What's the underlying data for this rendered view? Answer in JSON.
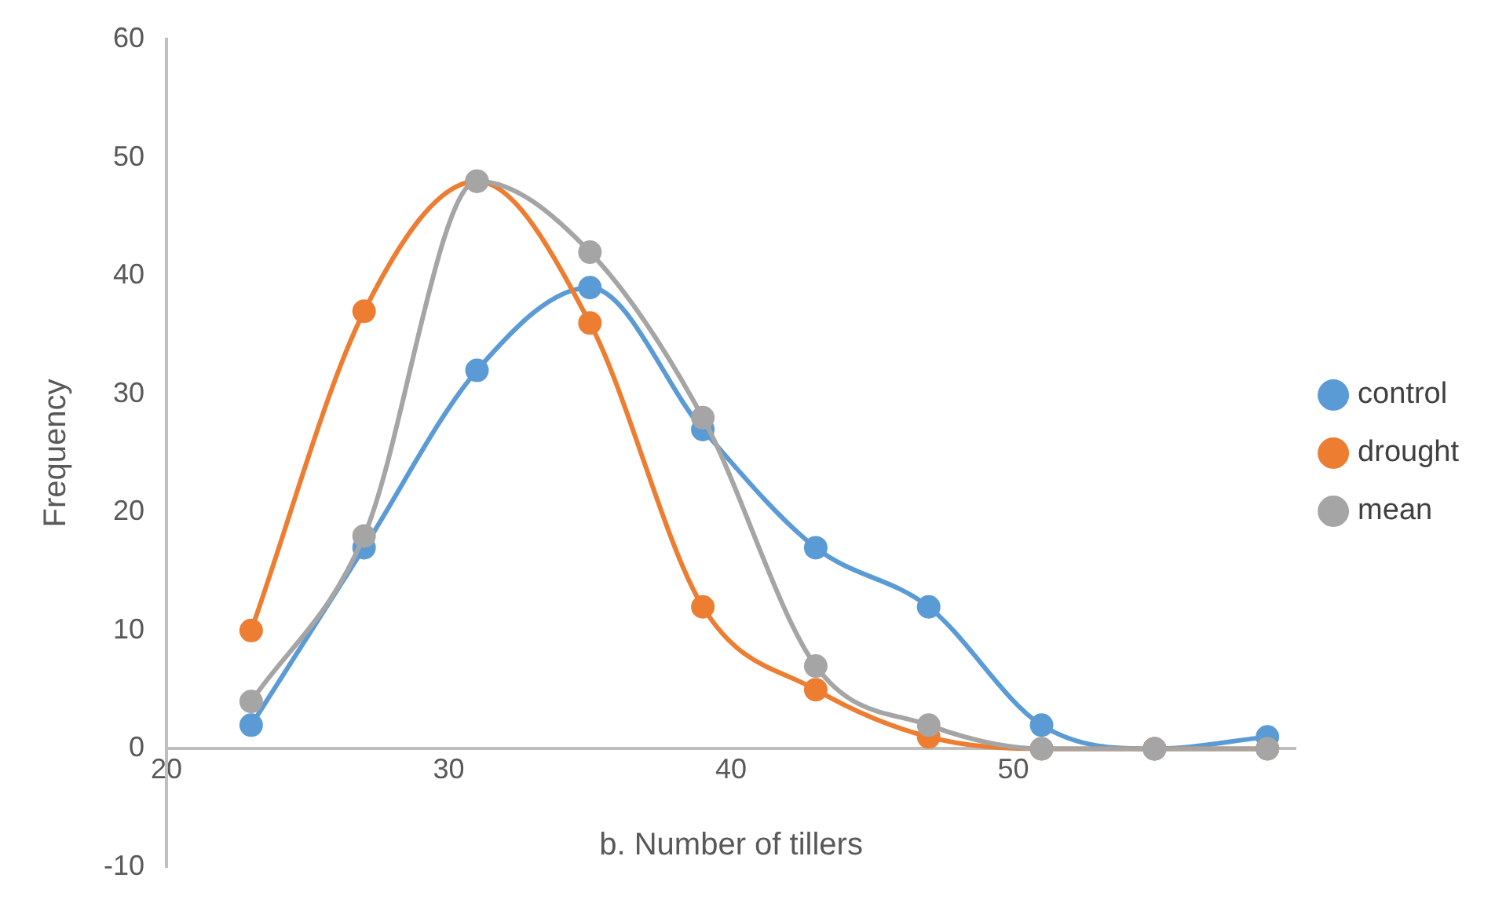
{
  "chart_data": {
    "type": "line",
    "xlabel": "b. Number of tillers",
    "ylabel": "Frequency",
    "x": [
      23,
      27,
      31,
      35,
      39,
      43,
      47,
      51,
      55,
      59
    ],
    "series": [
      {
        "name": "control",
        "color": "#5b9bd5",
        "values": [
          2,
          17,
          32,
          39,
          27,
          17,
          12,
          2,
          0,
          1
        ]
      },
      {
        "name": "drought",
        "color": "#ed7d31",
        "values": [
          10,
          37,
          48,
          36,
          12,
          5,
          1,
          0,
          0,
          0
        ]
      },
      {
        "name": "mean",
        "color": "#a5a5a5",
        "values": [
          4,
          18,
          48,
          42,
          28,
          7,
          2,
          0,
          0,
          0
        ]
      }
    ],
    "xlim": [
      20,
      60
    ],
    "xticks": [
      20,
      30,
      40,
      50
    ],
    "ylim": [
      -10,
      60
    ],
    "yticks": [
      -10,
      0,
      10,
      20,
      30,
      40,
      50,
      60
    ],
    "grid": false,
    "legend": "right",
    "marker": "circle",
    "line_style": "solid"
  }
}
